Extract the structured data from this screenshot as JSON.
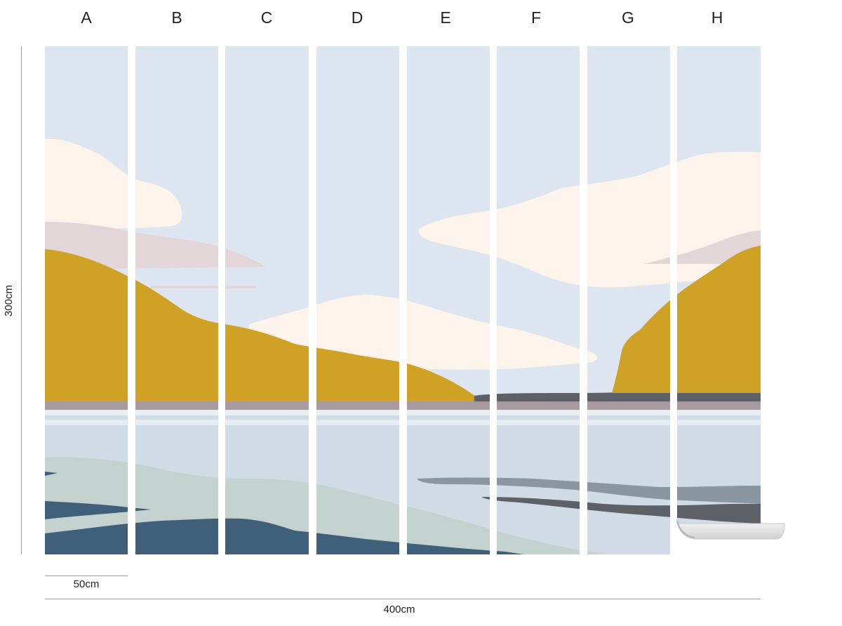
{
  "panels": [
    {
      "label": "A"
    },
    {
      "label": "B"
    },
    {
      "label": "C"
    },
    {
      "label": "D"
    },
    {
      "label": "E"
    },
    {
      "label": "F"
    },
    {
      "label": "G"
    },
    {
      "label": "H"
    }
  ],
  "dimensions": {
    "height_label": "300cm",
    "panel_width_label": "50cm",
    "total_width_label": "400cm"
  },
  "colors": {
    "sky": "#dce5f0",
    "cloud": "#fcf3ea",
    "cloud_haze": "#e2d6d8",
    "hill": "#cfa125",
    "hill_shadow": "#b58d1e",
    "shore_mauve": "#a89ba0",
    "far_shore_dark": "#5e6068",
    "water_light": "#d0dbe5",
    "water_pale_green": "#c3d1cf",
    "water_deep": "#3f5f7a",
    "water_grey": "#8a96a2",
    "gap": "#ffffff"
  }
}
